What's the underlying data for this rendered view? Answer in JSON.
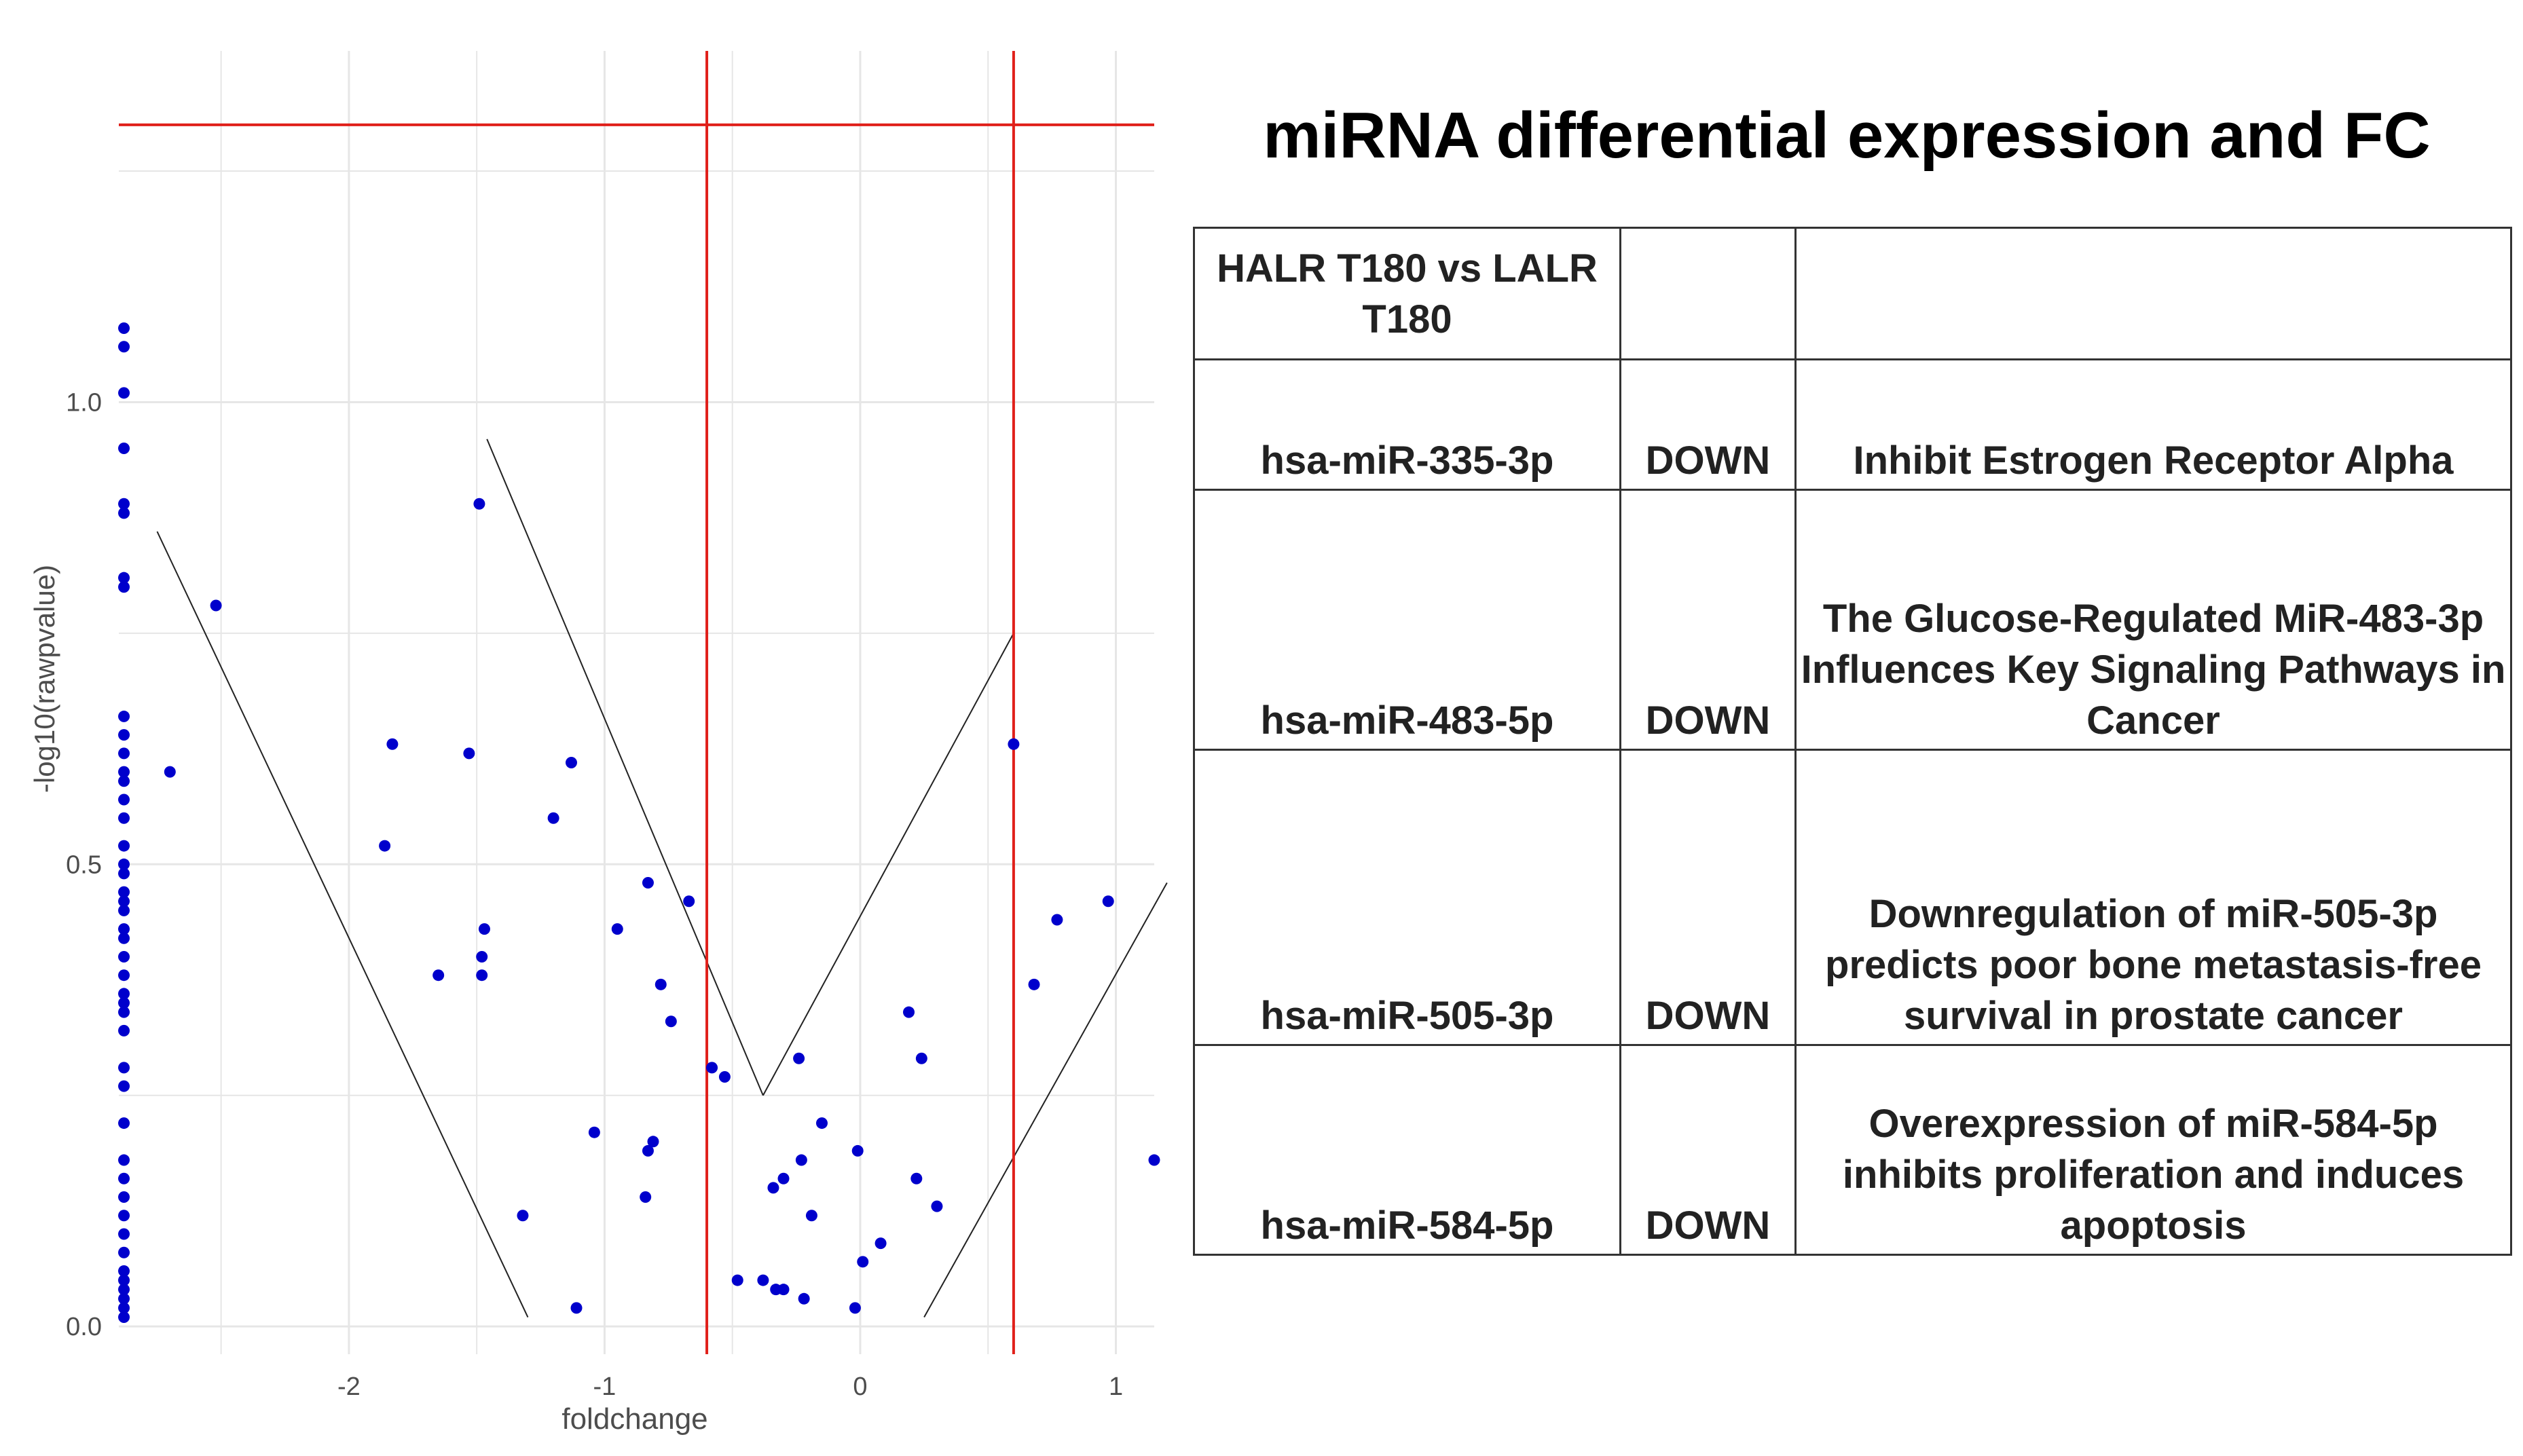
{
  "chart_data": {
    "type": "scatter",
    "title": "",
    "xlabel": "foldchange",
    "ylabel": "-log10(rawpvalue)",
    "xlim": [
      -2.9,
      1.15
    ],
    "ylim": [
      -0.03,
      1.38
    ],
    "x_ticks": [
      -2,
      -1,
      0,
      1
    ],
    "x_tick_labels": [
      "-2",
      "-1",
      "0",
      "1"
    ],
    "y_ticks": [
      0.0,
      0.5,
      1.0
    ],
    "y_tick_labels": [
      "0.0",
      "0.5",
      "1.0"
    ],
    "grid": true,
    "point_color": "#0000cc",
    "threshold_color": "#e0201a",
    "vertical_thresholds": [
      -0.6,
      0.6
    ],
    "horizontal_threshold": 1.3,
    "annotation_lines": [
      {
        "x": [
          -2.75,
          -1.3
        ],
        "y": [
          0.86,
          0.01
        ]
      },
      {
        "x": [
          -1.46,
          -0.38
        ],
        "y": [
          0.96,
          0.25
        ]
      },
      {
        "x": [
          -0.38,
          0.6
        ],
        "y": [
          0.25,
          0.75
        ]
      },
      {
        "x": [
          0.25,
          1.2
        ],
        "y": [
          0.01,
          0.48
        ]
      }
    ],
    "points": [
      {
        "x": -2.88,
        "y": 1.08
      },
      {
        "x": -2.88,
        "y": 1.06
      },
      {
        "x": -2.88,
        "y": 1.01
      },
      {
        "x": -2.88,
        "y": 0.95
      },
      {
        "x": -2.88,
        "y": 0.89
      },
      {
        "x": -2.88,
        "y": 0.88
      },
      {
        "x": -2.88,
        "y": 0.81
      },
      {
        "x": -2.88,
        "y": 0.8
      },
      {
        "x": -2.88,
        "y": 0.66
      },
      {
        "x": -2.88,
        "y": 0.64
      },
      {
        "x": -2.88,
        "y": 0.62
      },
      {
        "x": -2.88,
        "y": 0.6
      },
      {
        "x": -2.88,
        "y": 0.59
      },
      {
        "x": -2.88,
        "y": 0.57
      },
      {
        "x": -2.88,
        "y": 0.55
      },
      {
        "x": -2.88,
        "y": 0.52
      },
      {
        "x": -2.88,
        "y": 0.5
      },
      {
        "x": -2.88,
        "y": 0.49
      },
      {
        "x": -2.88,
        "y": 0.47
      },
      {
        "x": -2.88,
        "y": 0.46
      },
      {
        "x": -2.88,
        "y": 0.45
      },
      {
        "x": -2.88,
        "y": 0.43
      },
      {
        "x": -2.88,
        "y": 0.42
      },
      {
        "x": -2.88,
        "y": 0.4
      },
      {
        "x": -2.88,
        "y": 0.38
      },
      {
        "x": -2.88,
        "y": 0.36
      },
      {
        "x": -2.88,
        "y": 0.35
      },
      {
        "x": -2.88,
        "y": 0.34
      },
      {
        "x": -2.88,
        "y": 0.32
      },
      {
        "x": -2.88,
        "y": 0.28
      },
      {
        "x": -2.88,
        "y": 0.26
      },
      {
        "x": -2.88,
        "y": 0.22
      },
      {
        "x": -2.88,
        "y": 0.18
      },
      {
        "x": -2.88,
        "y": 0.16
      },
      {
        "x": -2.88,
        "y": 0.14
      },
      {
        "x": -2.88,
        "y": 0.12
      },
      {
        "x": -2.88,
        "y": 0.1
      },
      {
        "x": -2.88,
        "y": 0.08
      },
      {
        "x": -2.88,
        "y": 0.06
      },
      {
        "x": -2.88,
        "y": 0.05
      },
      {
        "x": -2.88,
        "y": 0.04
      },
      {
        "x": -2.88,
        "y": 0.03
      },
      {
        "x": -2.88,
        "y": 0.02
      },
      {
        "x": -2.88,
        "y": 0.01
      },
      {
        "x": -2.7,
        "y": 0.6
      },
      {
        "x": -2.52,
        "y": 0.78
      },
      {
        "x": -1.86,
        "y": 0.52
      },
      {
        "x": -1.83,
        "y": 0.63
      },
      {
        "x": -1.65,
        "y": 0.38
      },
      {
        "x": -1.53,
        "y": 0.62
      },
      {
        "x": -1.49,
        "y": 0.89
      },
      {
        "x": -1.47,
        "y": 0.43
      },
      {
        "x": -1.48,
        "y": 0.4
      },
      {
        "x": -1.48,
        "y": 0.38
      },
      {
        "x": -1.32,
        "y": 0.12
      },
      {
        "x": -1.2,
        "y": 0.55
      },
      {
        "x": -1.13,
        "y": 0.61
      },
      {
        "x": -1.11,
        "y": 0.02
      },
      {
        "x": -1.04,
        "y": 0.21
      },
      {
        "x": -0.95,
        "y": 0.43
      },
      {
        "x": -0.83,
        "y": 0.48
      },
      {
        "x": -0.84,
        "y": 0.14
      },
      {
        "x": -0.83,
        "y": 0.19
      },
      {
        "x": -0.81,
        "y": 0.2
      },
      {
        "x": -0.78,
        "y": 0.37
      },
      {
        "x": -0.74,
        "y": 0.33
      },
      {
        "x": -0.67,
        "y": 0.46
      },
      {
        "x": -0.58,
        "y": 0.28
      },
      {
        "x": -0.53,
        "y": 0.27
      },
      {
        "x": -0.48,
        "y": 0.05
      },
      {
        "x": -0.38,
        "y": 0.05
      },
      {
        "x": -0.34,
        "y": 0.15
      },
      {
        "x": -0.33,
        "y": 0.04
      },
      {
        "x": -0.3,
        "y": 0.04
      },
      {
        "x": -0.3,
        "y": 0.16
      },
      {
        "x": -0.24,
        "y": 0.29
      },
      {
        "x": -0.23,
        "y": 0.18
      },
      {
        "x": -0.22,
        "y": 0.03
      },
      {
        "x": -0.19,
        "y": 0.12
      },
      {
        "x": -0.15,
        "y": 0.22
      },
      {
        "x": -0.02,
        "y": 0.02
      },
      {
        "x": -0.01,
        "y": 0.19
      },
      {
        "x": 0.01,
        "y": 0.07
      },
      {
        "x": 0.08,
        "y": 0.09
      },
      {
        "x": 0.19,
        "y": 0.34
      },
      {
        "x": 0.22,
        "y": 0.16
      },
      {
        "x": 0.24,
        "y": 0.29
      },
      {
        "x": 0.3,
        "y": 0.13
      },
      {
        "x": 0.6,
        "y": 0.63
      },
      {
        "x": 0.68,
        "y": 0.37
      },
      {
        "x": 0.77,
        "y": 0.44
      },
      {
        "x": 0.97,
        "y": 0.46
      },
      {
        "x": 1.15,
        "y": 0.18
      }
    ]
  },
  "panel": {
    "title": "miRNA differential expression and FC",
    "header": [
      "HALR  T180 vs LALR T180",
      "",
      ""
    ],
    "rows": [
      {
        "mirna": "hsa-miR-335-3p",
        "direction": "DOWN",
        "description": "Inhibit  Estrogen Receptor Alpha"
      },
      {
        "mirna": "hsa-miR-483-5p",
        "direction": "DOWN",
        "description": "The Glucose-Regulated MiR-483-3p Influences Key Signaling Pathways in Cancer"
      },
      {
        "mirna": "hsa-miR-505-3p",
        "direction": "DOWN",
        "description": "Downregulation  of miR-505-3p predicts poor bone metastasis-free survival in prostate cancer"
      },
      {
        "mirna": "hsa-miR-584-5p",
        "direction": "DOWN",
        "description": "Overexpression of miR-584-5p inhibits  proliferation  and induces apoptosis"
      }
    ]
  }
}
